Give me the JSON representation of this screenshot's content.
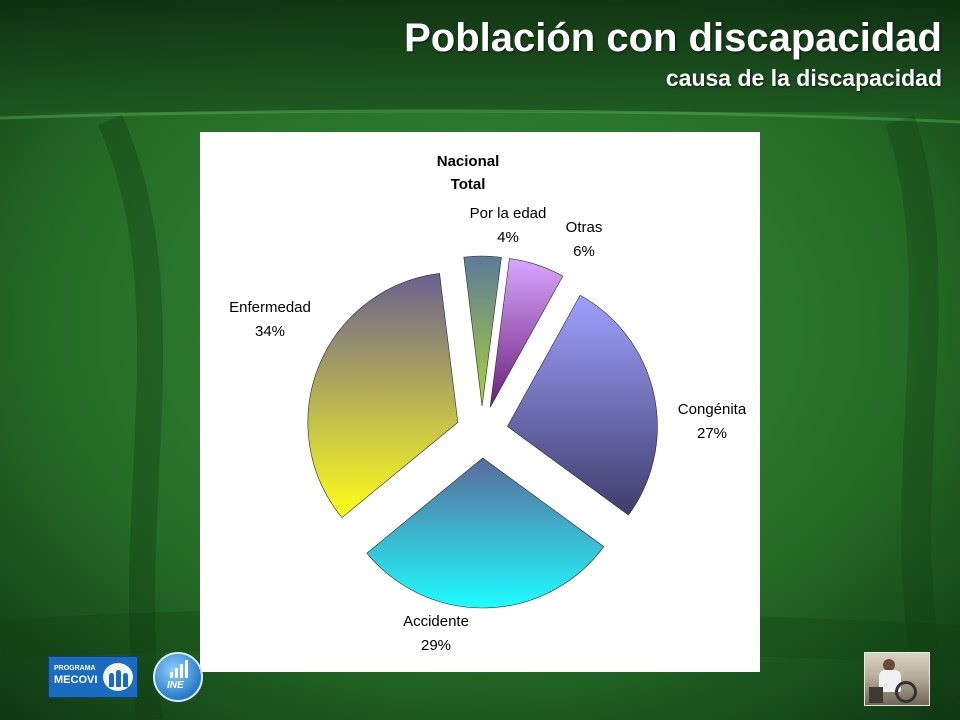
{
  "slide": {
    "title": "Población con discapacidad",
    "subtitle": "causa de la discapacidad"
  },
  "logos": {
    "mecovi_line1": "PROGRAMA",
    "mecovi_line2": "MECOVI",
    "ine": "INE"
  },
  "chart_data": {
    "type": "pie",
    "title": "Nacional",
    "subtitle": "Total",
    "exploded": true,
    "slices": [
      {
        "label": "Por la edad",
        "value": 4,
        "percent_label": "4%",
        "colors": [
          "#5d7a9a",
          "#a8d23a"
        ]
      },
      {
        "label": "Otras",
        "value": 6,
        "percent_label": "6%",
        "colors": [
          "#d9a6ff",
          "#6a1f7a"
        ]
      },
      {
        "label": "Congénita",
        "value": 27,
        "percent_label": "27%",
        "colors": [
          "#9fa0ff",
          "#3f3d6b"
        ]
      },
      {
        "label": "Accidente",
        "value": 29,
        "percent_label": "29%",
        "colors": [
          "#5a6a9a",
          "#1ffcff"
        ]
      },
      {
        "label": "Enfermedad",
        "value": 34,
        "percent_label": "34%",
        "colors": [
          "#6a6090",
          "#ffff1a"
        ]
      }
    ]
  }
}
